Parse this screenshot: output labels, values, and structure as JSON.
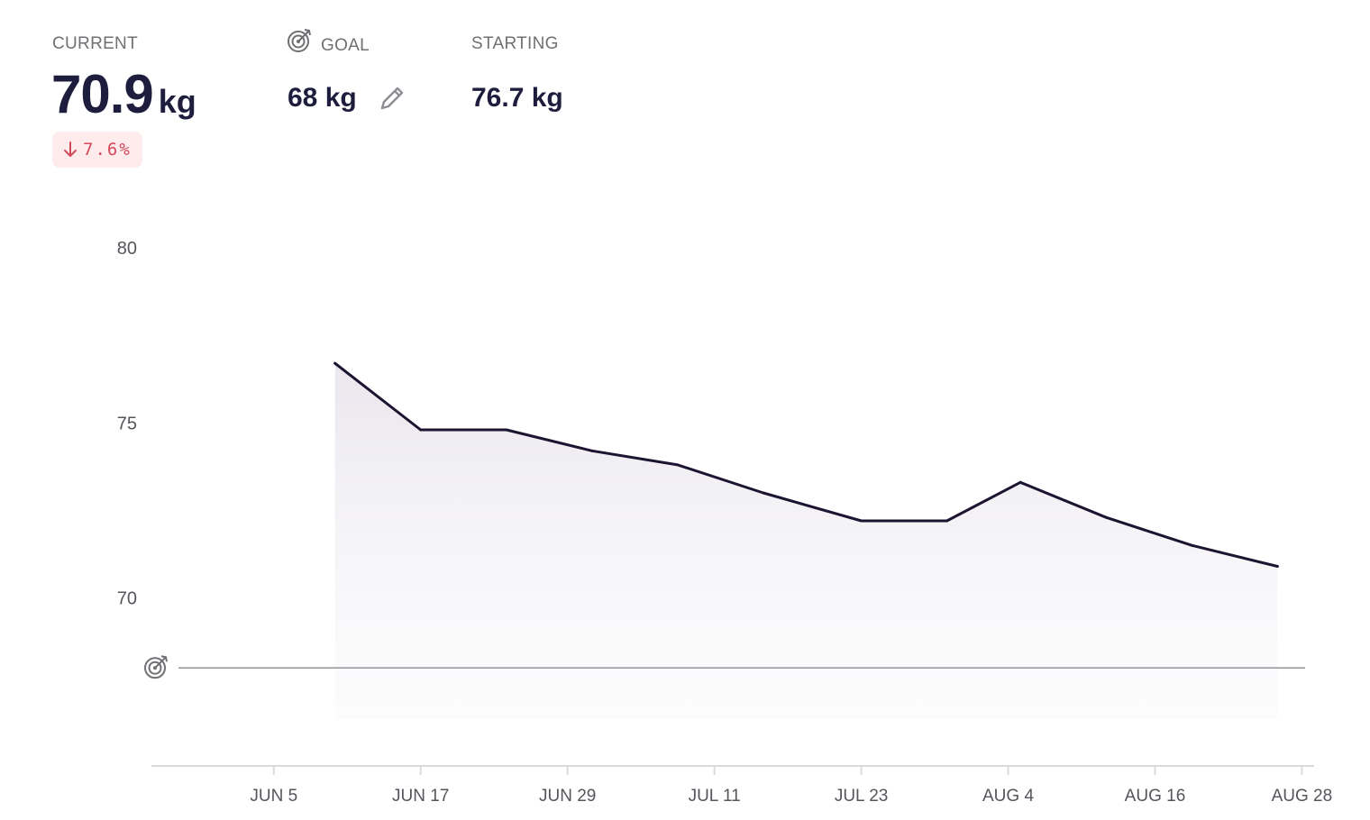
{
  "header": {
    "current": {
      "label": "CURRENT",
      "value": "70.9",
      "unit": "kg",
      "change": "7.6%",
      "change_direction": "down",
      "change_color": "#d4485b"
    },
    "goal": {
      "label": "GOAL",
      "value": "68 kg",
      "icon": "target-icon",
      "edit_icon": "pencil-icon"
    },
    "starting": {
      "label": "STARTING",
      "value": "76.7 kg"
    }
  },
  "chart_data": {
    "type": "area",
    "x": [
      "2024-06-10",
      "2024-06-17",
      "2024-06-24",
      "2024-07-01",
      "2024-07-08",
      "2024-07-15",
      "2024-07-23",
      "2024-07-30",
      "2024-08-05",
      "2024-08-12",
      "2024-08-19",
      "2024-08-26"
    ],
    "series": [
      {
        "values": [
          76.7,
          74.8,
          74.8,
          74.2,
          73.8,
          73.0,
          72.2,
          72.2,
          73.3,
          72.3,
          71.5,
          70.9
        ],
        "color": "#1c1430"
      }
    ],
    "x_tick_labels": [
      "JUN 5",
      "JUN 17",
      "JUN 29",
      "JUL 11",
      "JUL 23",
      "AUG 4",
      "AUG 16",
      "AUG 28"
    ],
    "x_tick_dates": [
      "2024-06-05",
      "2024-06-17",
      "2024-06-29",
      "2024-07-11",
      "2024-07-23",
      "2024-08-04",
      "2024-08-16",
      "2024-08-28"
    ],
    "x_range": [
      "2024-05-26",
      "2024-08-29"
    ],
    "y_tick_labels": [
      "80",
      "75",
      "70"
    ],
    "y_ticks": [
      80,
      75,
      70
    ],
    "ylim": [
      65.2,
      80
    ],
    "goal_line": 68,
    "goal_icon": "target-icon",
    "goal_line_color": "#9a9ba0",
    "grid": false
  }
}
